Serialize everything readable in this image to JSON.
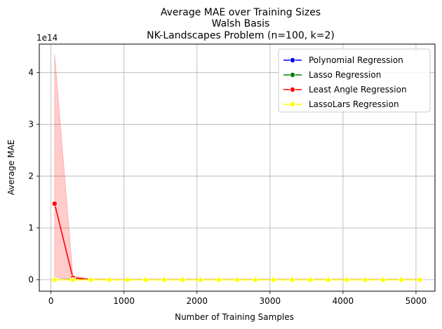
{
  "chart_data": {
    "type": "line",
    "title_lines": [
      "Average MAE over Training Sizes",
      "Walsh Basis",
      "NK-Landscapes Problem (n=100, k=2)"
    ],
    "xlabel": "Number of Training Samples",
    "ylabel": "Average MAE",
    "offset_label": "1e14",
    "y_scale_factor": 100000000000000.0,
    "xlim": [
      -160,
      5260
    ],
    "ylim": [
      -0.22,
      4.55
    ],
    "xticks": [
      0,
      1000,
      2000,
      3000,
      4000,
      5000
    ],
    "yticks": [
      0,
      1,
      2,
      3,
      4
    ],
    "grid": true,
    "legend_position": "top-right",
    "x": [
      50,
      300,
      550,
      800,
      1050,
      1300,
      1550,
      1800,
      2050,
      2300,
      2550,
      2800,
      3050,
      3300,
      3550,
      3800,
      4050,
      4300,
      4550,
      4800,
      5050
    ],
    "series": [
      {
        "name": "Polynomial Regression",
        "color": "#0000ff",
        "values": [
          0,
          0,
          0,
          0,
          0,
          0,
          0,
          0,
          0,
          0,
          0,
          0,
          0,
          0,
          0,
          0,
          0,
          0,
          0,
          0,
          0
        ]
      },
      {
        "name": "Lasso Regression",
        "color": "#008000",
        "values": [
          0,
          0,
          0,
          0,
          0,
          0,
          0,
          0,
          0,
          0,
          0,
          0,
          0,
          0,
          0,
          0,
          0,
          0,
          0,
          0,
          0
        ]
      },
      {
        "name": "Least Angle Regression",
        "color": "#ff0000",
        "values": [
          1.47,
          0.04,
          0.005,
          0,
          0,
          0,
          0,
          0,
          0,
          0,
          0,
          0,
          0,
          0,
          0,
          0,
          0,
          0,
          0,
          0,
          0
        ],
        "band_upper": [
          4.35,
          0.08,
          0.01,
          0,
          0,
          0,
          0,
          0,
          0,
          0,
          0,
          0,
          0,
          0,
          0,
          0,
          0,
          0,
          0,
          0,
          0
        ],
        "band_lower": [
          0.05,
          0,
          0,
          0,
          0,
          0,
          0,
          0,
          0,
          0,
          0,
          0,
          0,
          0,
          0,
          0,
          0,
          0,
          0,
          0,
          0
        ]
      },
      {
        "name": "LassoLars Regression",
        "color": "#ffff00",
        "values": [
          0,
          0,
          0,
          0,
          0,
          0,
          0,
          0,
          0,
          0,
          0,
          0,
          0,
          0,
          0,
          0,
          0,
          0,
          0,
          0,
          0
        ]
      }
    ]
  }
}
